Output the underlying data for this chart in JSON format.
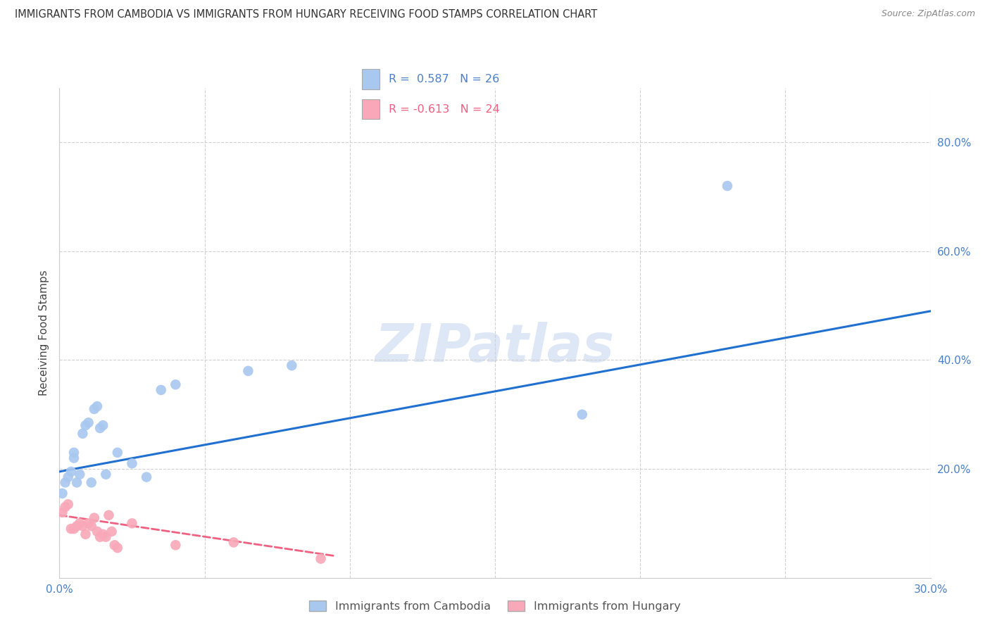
{
  "title": "IMMIGRANTS FROM CAMBODIA VS IMMIGRANTS FROM HUNGARY RECEIVING FOOD STAMPS CORRELATION CHART",
  "source": "Source: ZipAtlas.com",
  "ylabel": "Receiving Food Stamps",
  "xlabel": "",
  "xlim": [
    0.0,
    0.3
  ],
  "ylim": [
    0.0,
    0.9
  ],
  "yticks": [
    0.0,
    0.2,
    0.4,
    0.6,
    0.8
  ],
  "xticks": [
    0.0,
    0.05,
    0.1,
    0.15,
    0.2,
    0.25,
    0.3
  ],
  "r_cambodia": 0.587,
  "n_cambodia": 26,
  "r_hungary": -0.613,
  "n_hungary": 24,
  "legend_label_cambodia": "Immigrants from Cambodia",
  "legend_label_hungary": "Immigrants from Hungary",
  "color_cambodia": "#a8c8f0",
  "color_hungary": "#f8a8b8",
  "line_color_cambodia": "#2070d0",
  "line_color_hungary": "#f06080",
  "background_color": "#ffffff",
  "grid_color": "#d0d0d0",
  "watermark_text": "ZIPatlas",
  "cambodia_x": [
    0.001,
    0.002,
    0.003,
    0.004,
    0.005,
    0.005,
    0.006,
    0.007,
    0.008,
    0.009,
    0.01,
    0.011,
    0.012,
    0.013,
    0.014,
    0.015,
    0.016,
    0.02,
    0.025,
    0.03,
    0.035,
    0.04,
    0.065,
    0.08,
    0.18,
    0.23
  ],
  "cambodia_y": [
    0.155,
    0.175,
    0.185,
    0.195,
    0.22,
    0.23,
    0.175,
    0.19,
    0.265,
    0.28,
    0.285,
    0.175,
    0.31,
    0.315,
    0.275,
    0.28,
    0.19,
    0.23,
    0.21,
    0.185,
    0.345,
    0.355,
    0.38,
    0.39,
    0.3,
    0.72
  ],
  "hungary_x": [
    0.001,
    0.002,
    0.003,
    0.004,
    0.005,
    0.006,
    0.007,
    0.008,
    0.009,
    0.01,
    0.011,
    0.012,
    0.013,
    0.014,
    0.015,
    0.016,
    0.017,
    0.018,
    0.019,
    0.02,
    0.025,
    0.04,
    0.06,
    0.09
  ],
  "hungary_y": [
    0.12,
    0.13,
    0.135,
    0.09,
    0.09,
    0.095,
    0.1,
    0.095,
    0.08,
    0.1,
    0.095,
    0.11,
    0.085,
    0.075,
    0.08,
    0.075,
    0.115,
    0.085,
    0.06,
    0.055,
    0.1,
    0.06,
    0.065,
    0.035
  ],
  "line_cambodia_x0": 0.0,
  "line_cambodia_x1": 0.3,
  "line_cambodia_y0": 0.195,
  "line_cambodia_y1": 0.49,
  "line_hungary_x0": 0.0,
  "line_hungary_x1": 0.095,
  "line_hungary_y0": 0.115,
  "line_hungary_y1": 0.04
}
